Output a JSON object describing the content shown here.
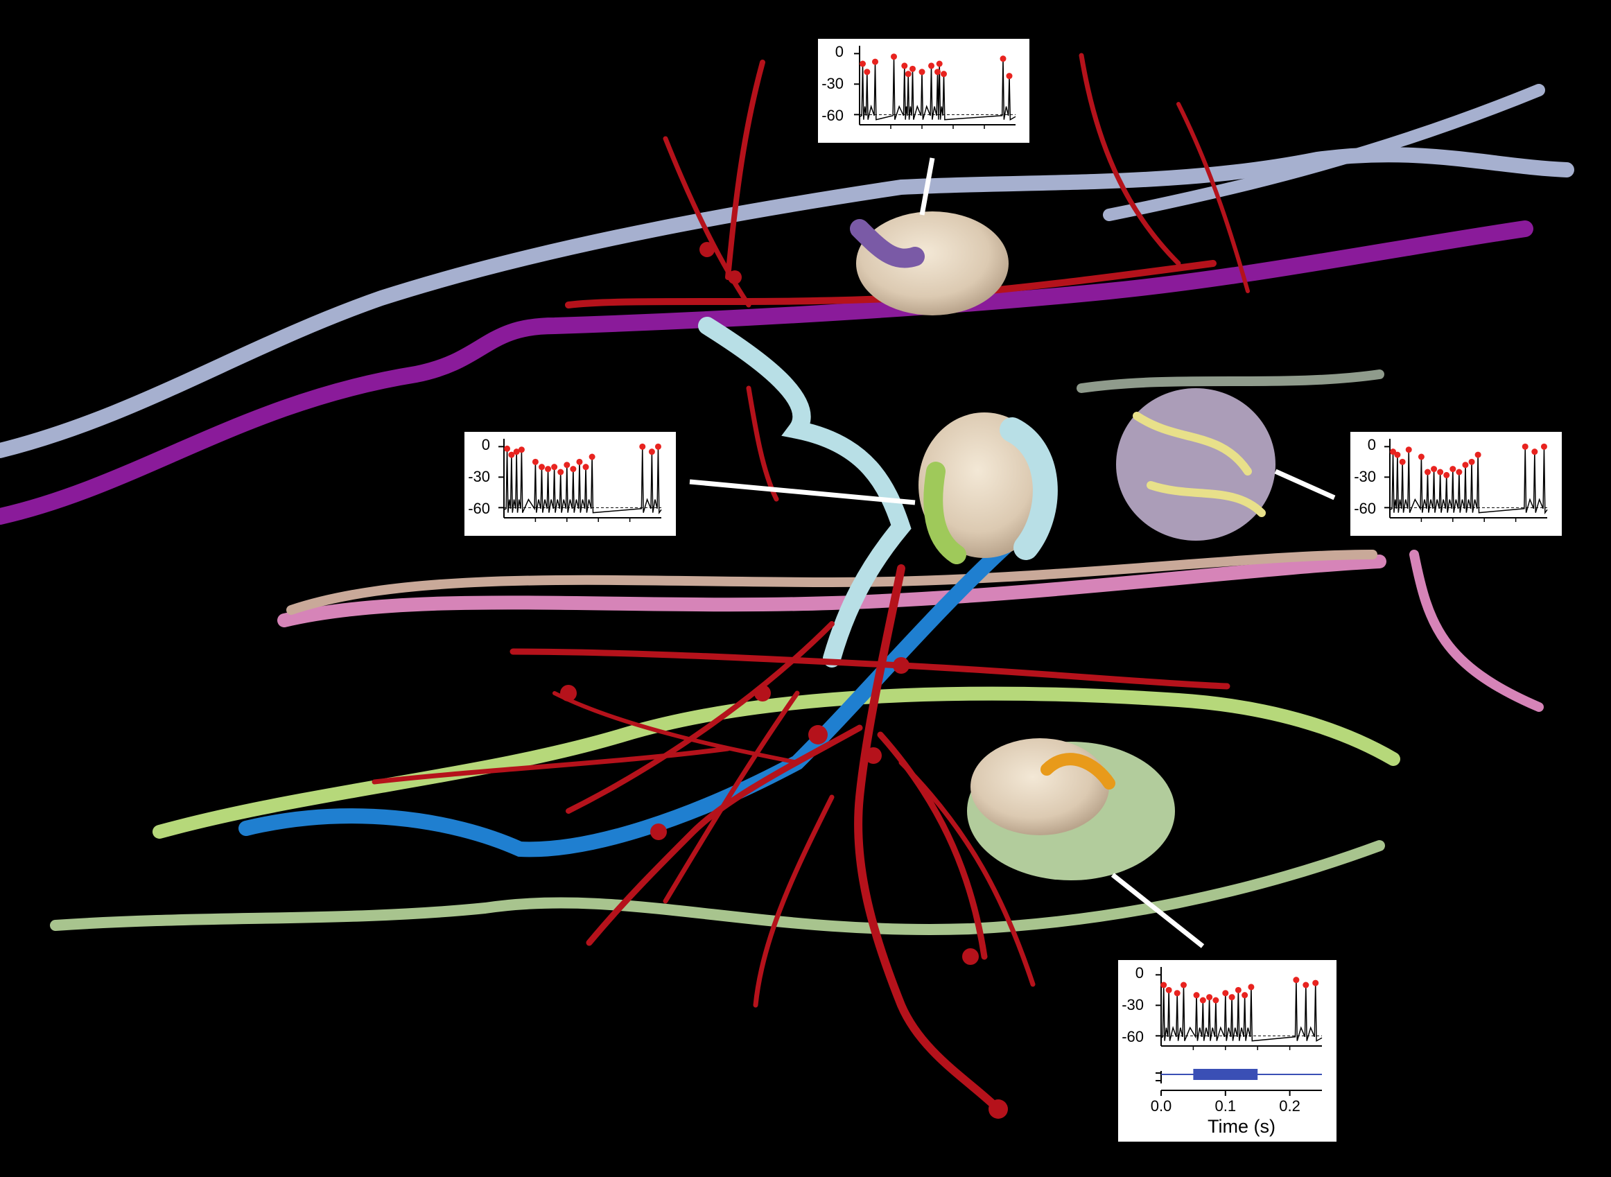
{
  "chart_data": {
    "type": "line",
    "description_units": {
      "y": "mV",
      "x": "s"
    },
    "panels": [
      {
        "id": "top",
        "ylim": [
          -70,
          5
        ],
        "yticks": [
          0,
          -30,
          -60
        ],
        "xlim": [
          0,
          0.25
        ],
        "baseline": -60,
        "spike_times": [
          0.005,
          0.012,
          0.025,
          0.055,
          0.072,
          0.078,
          0.085,
          0.1,
          0.115,
          0.125,
          0.128,
          0.135,
          0.23,
          0.24
        ],
        "spike_peaks": [
          -10,
          -18,
          -8,
          -3,
          -12,
          -20,
          -15,
          -18,
          -12,
          -18,
          -10,
          -20,
          -5,
          -22
        ]
      },
      {
        "id": "left",
        "ylim": [
          -70,
          5
        ],
        "yticks": [
          0,
          -30,
          -60
        ],
        "xlim": [
          0,
          0.25
        ],
        "baseline": -60,
        "spike_times": [
          0.005,
          0.012,
          0.02,
          0.028,
          0.05,
          0.06,
          0.07,
          0.08,
          0.09,
          0.1,
          0.11,
          0.12,
          0.13,
          0.14,
          0.22,
          0.235,
          0.245
        ],
        "spike_peaks": [
          -2,
          -8,
          -5,
          -3,
          -15,
          -20,
          -22,
          -20,
          -25,
          -18,
          -22,
          -15,
          -20,
          -10,
          0,
          -5,
          0
        ]
      },
      {
        "id": "right",
        "ylim": [
          -70,
          5
        ],
        "yticks": [
          0,
          -30,
          -60
        ],
        "xlim": [
          0,
          0.25
        ],
        "baseline": -60,
        "spike_times": [
          0.005,
          0.012,
          0.02,
          0.03,
          0.05,
          0.06,
          0.07,
          0.08,
          0.09,
          0.1,
          0.11,
          0.12,
          0.13,
          0.14,
          0.215,
          0.23,
          0.245
        ],
        "spike_peaks": [
          -5,
          -8,
          -15,
          -3,
          -10,
          -25,
          -22,
          -25,
          -28,
          -22,
          -25,
          -18,
          -15,
          -8,
          0,
          -5,
          0
        ]
      },
      {
        "id": "bottom",
        "ylim": [
          -70,
          5
        ],
        "yticks": [
          0,
          -30,
          -60
        ],
        "xlim": [
          0,
          0.25
        ],
        "xticks": [
          0.0,
          0.1,
          0.2
        ],
        "xlabel": "Time (s)",
        "baseline": -60,
        "spike_times": [
          0.004,
          0.012,
          0.025,
          0.035,
          0.055,
          0.065,
          0.075,
          0.085,
          0.1,
          0.11,
          0.12,
          0.13,
          0.14,
          0.21,
          0.225,
          0.24
        ],
        "spike_peaks": [
          -10,
          -15,
          -18,
          -10,
          -20,
          -25,
          -22,
          -25,
          -18,
          -22,
          -15,
          -20,
          -12,
          -5,
          -10,
          -8
        ],
        "stimulus": {
          "start": 0.05,
          "end": 0.15,
          "color": "#3a4fb5"
        }
      }
    ]
  },
  "ticks": {
    "y0": "0",
    "y30": "-30",
    "y60": "-60",
    "x0": "0.0",
    "x1": "0.1",
    "x2": "0.2",
    "xlabel": "Time (s)"
  },
  "colors": {
    "background": "#000000",
    "spike_marker": "#e8231f",
    "trace": "#000000",
    "stimulus": "#3a4fb5",
    "red_neurite": "#b5121b",
    "lavender_axon": "#a6b0cf",
    "purple_axon": "#8a1b9a",
    "pink_axon": "#d684b8",
    "tan_axon": "#c9a999",
    "lightgreen_axon": "#b6d87a",
    "sage_axon": "#a8c48e",
    "blue_axon": "#1f7fd0",
    "cyan_process": "#b8dfe6",
    "cell_body": "#e8dcc8"
  }
}
